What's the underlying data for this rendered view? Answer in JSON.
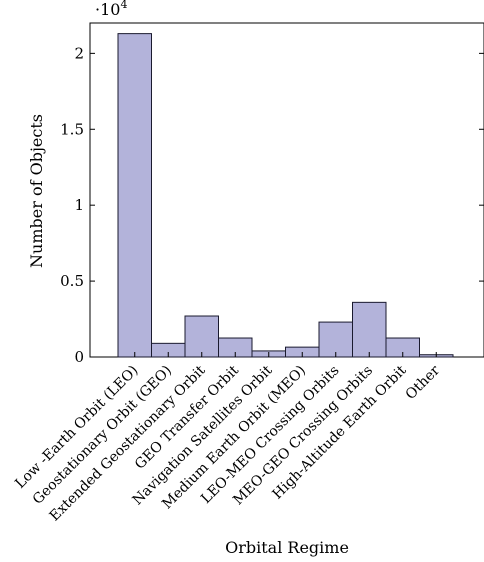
{
  "chart_data": {
    "type": "bar",
    "title": "",
    "xlabel": "Orbital Regime",
    "ylabel": "Number of Objects",
    "y_multiplier_label": "·10",
    "y_multiplier_exponent": "4",
    "ylim": [
      0,
      22000
    ],
    "yticks": [
      0,
      5000,
      10000,
      15000,
      20000
    ],
    "ytick_labels": [
      "0",
      "0.5",
      "1",
      "1.5",
      "2"
    ],
    "categories": [
      "Low -Earth Orbit (LEO)",
      "Geostationary Orbit (GEO)",
      "Extended Geostationary Orbit",
      "GEO Transfer Orbit",
      "Navigation Satellites Orbit",
      "Medium Earth Orbit (MEO)",
      "LEO-MEO Crossing Orbits",
      "MEO-GEO Crossing Orbits",
      "High-Altitude Earth Orbit",
      "Other"
    ],
    "values": [
      21300,
      900,
      2700,
      1250,
      400,
      650,
      2300,
      3600,
      1250,
      150
    ],
    "bar_color": "#b3b3da",
    "bar_edge_color": "#1a1a2e",
    "grid": false,
    "legend": "none"
  }
}
